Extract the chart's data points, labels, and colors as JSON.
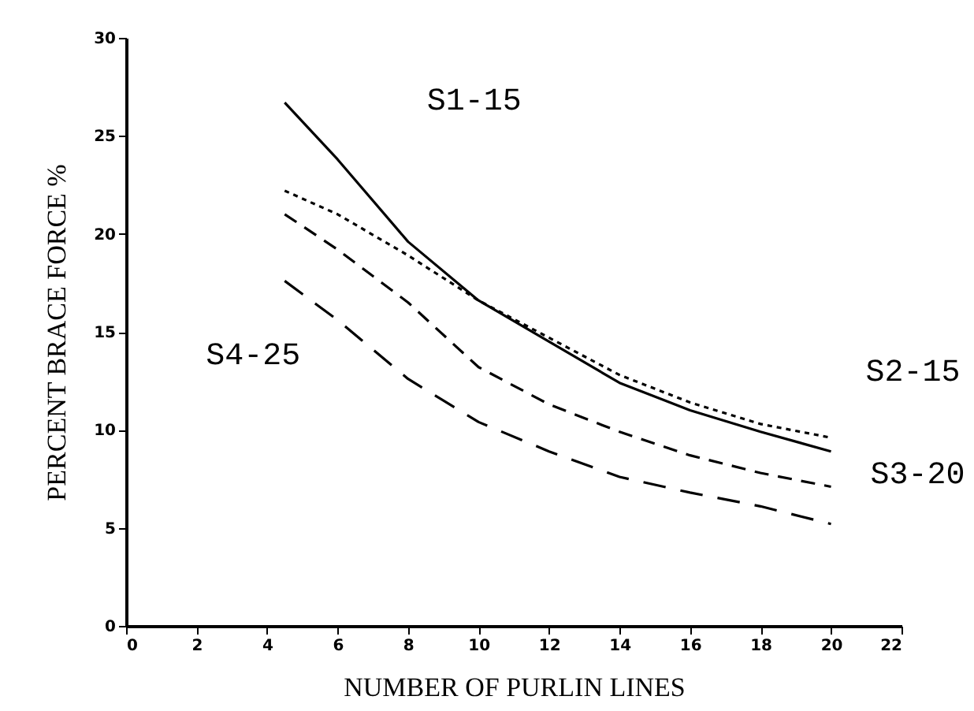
{
  "chart_data": {
    "type": "line",
    "xlabel": "NUMBER OF PURLIN LINES",
    "ylabel": "PERCENT BRACE FORCE %",
    "x": [
      4.5,
      6,
      8,
      10,
      12,
      14,
      16,
      18,
      20
    ],
    "series": [
      {
        "name": "S1-15",
        "color": "#000000",
        "line_style": "solid",
        "values": [
          26.7,
          23.8,
          19.6,
          16.6,
          14.5,
          12.4,
          11.0,
          9.9,
          8.9
        ]
      },
      {
        "name": "S2-15",
        "color": "#000000",
        "line_style": "dotted",
        "values": [
          22.2,
          21.0,
          18.9,
          16.6,
          14.7,
          12.8,
          11.4,
          10.3,
          9.6
        ]
      },
      {
        "name": "S3-20",
        "color": "#000000",
        "line_style": "dashed",
        "values": [
          21.0,
          19.2,
          16.5,
          13.2,
          11.3,
          9.9,
          8.7,
          7.8,
          7.1
        ]
      },
      {
        "name": "S4-25",
        "color": "#000000",
        "line_style": "dashed",
        "values": [
          17.6,
          15.6,
          12.6,
          10.4,
          8.9,
          7.6,
          6.8,
          6.1,
          5.2
        ]
      }
    ],
    "xlim": [
      0,
      22
    ],
    "xticks": [
      0,
      2,
      4,
      6,
      8,
      10,
      12,
      14,
      16,
      18,
      20,
      22
    ],
    "ylim": [
      0,
      30
    ],
    "yticks": [
      0,
      5,
      10,
      15,
      20,
      25,
      30
    ],
    "grid": false,
    "marker": "none"
  }
}
